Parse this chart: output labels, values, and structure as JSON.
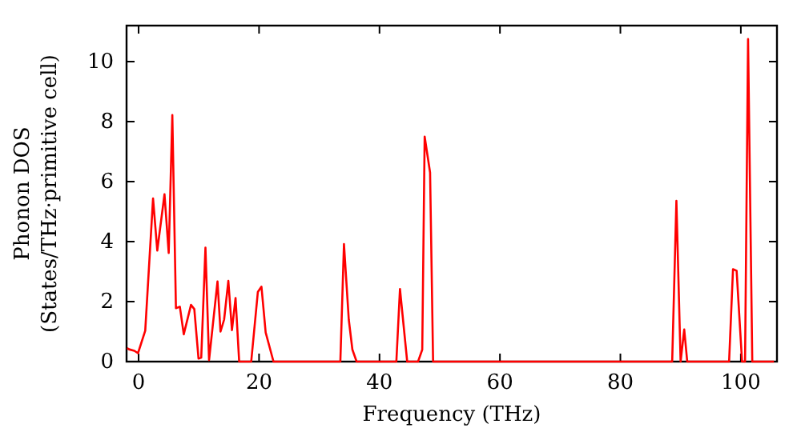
{
  "chart_data": {
    "type": "line",
    "xlabel": "Frequency (THz)",
    "ylabel": "Phonon DOS\n(States/THz·primitive cell)",
    "xlim": [
      -2,
      106
    ],
    "ylim": [
      0,
      11.2
    ],
    "xticks": [
      0,
      20,
      40,
      60,
      80,
      100
    ],
    "yticks": [
      0,
      2,
      4,
      6,
      8,
      10
    ],
    "grid": false,
    "marker": "none",
    "line_style": "solid",
    "series": [
      {
        "color": "#ff0000",
        "x": [
          -1.9,
          -1.6,
          -0.7,
          -0.1,
          1.1,
          2.4,
          3.1,
          4.3,
          5.0,
          5.6,
          6.2,
          6.85,
          7.5,
          8.7,
          9.25,
          9.95,
          10.4,
          11.1,
          11.7,
          13.1,
          13.6,
          14.2,
          14.9,
          15.5,
          16.1,
          16.7,
          18.7,
          19.8,
          20.4,
          21.1,
          22.4,
          33.5,
          34.1,
          34.9,
          35.5,
          36.2,
          42.8,
          43.4,
          44.6,
          46.4,
          47.1,
          47.5,
          48.4,
          48.9,
          88.6,
          89.3,
          90.0,
          90.6,
          91.1,
          98.05,
          98.7,
          99.3,
          100.2,
          100.7,
          101.2,
          101.9,
          105.5
        ],
        "values": [
          0.45,
          0.41,
          0.36,
          0.28,
          1.03,
          5.44,
          3.7,
          5.58,
          3.62,
          8.22,
          1.78,
          1.83,
          0.91,
          1.89,
          1.75,
          0.1,
          0.13,
          3.8,
          0.05,
          2.67,
          1.0,
          1.4,
          2.69,
          1.05,
          2.12,
          0,
          0,
          2.32,
          2.5,
          0.97,
          0,
          0,
          3.92,
          1.4,
          0.4,
          0,
          0,
          2.42,
          0,
          0,
          0.4,
          7.5,
          6.3,
          0,
          0,
          5.36,
          0,
          1.07,
          0,
          0,
          3.08,
          3.03,
          0,
          0,
          10.75,
          0,
          0
        ]
      }
    ]
  }
}
